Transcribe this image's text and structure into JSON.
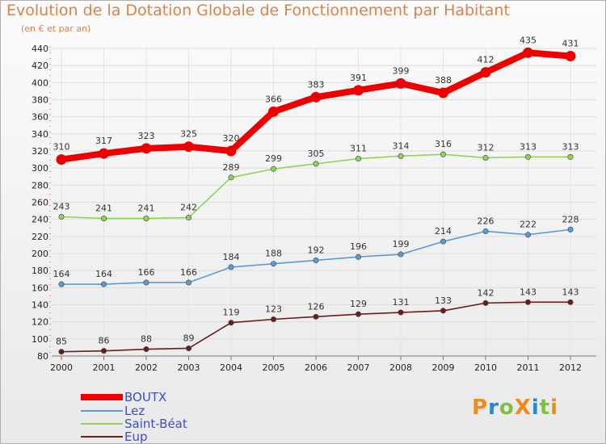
{
  "title": "Evolution de la Dotation Globale de Fonctionnement par Habitant",
  "subtitle": "(en € et par an)",
  "logo": {
    "text": "ProXiti",
    "letters": [
      "P",
      "r",
      "o",
      "X",
      "i",
      "t",
      "i"
    ],
    "colors": [
      "#f08a1c",
      "#2a86d0",
      "#7cc242",
      "#f08a1c",
      "#2a86d0",
      "#7cc242",
      "#f08a1c"
    ]
  },
  "legend": [
    {
      "name": "BOUTX",
      "color": "#ee0000"
    },
    {
      "name": "Lez",
      "color": "#5b9bd5"
    },
    {
      "name": "Saint-Béat",
      "color": "#8ed454"
    },
    {
      "name": "Eup",
      "color": "#6b1c1c"
    }
  ],
  "chart_data": {
    "type": "line",
    "title": "Evolution de la Dotation Globale de Fonctionnement par Habitant",
    "ylabel": "(en € et par an)",
    "xlabel": "",
    "x": [
      "2000",
      "2001",
      "2002",
      "2003",
      "2004",
      "2005",
      "2006",
      "2007",
      "2008",
      "2009",
      "2010",
      "2011",
      "2012"
    ],
    "ylim": [
      80,
      440
    ],
    "yticks": [
      80,
      100,
      120,
      140,
      160,
      180,
      200,
      220,
      240,
      260,
      280,
      300,
      320,
      340,
      360,
      380,
      400,
      420,
      440
    ],
    "grid": true,
    "legend_position": "bottom-left",
    "series": [
      {
        "name": "BOUTX",
        "color": "#ee0000",
        "emphasis": true,
        "values": [
          310,
          317,
          323,
          325,
          320,
          366,
          383,
          391,
          399,
          388,
          412,
          435,
          431
        ]
      },
      {
        "name": "Lez",
        "color": "#5b9bd5",
        "values": [
          164,
          164,
          166,
          166,
          184,
          188,
          192,
          196,
          199,
          214,
          226,
          222,
          228
        ]
      },
      {
        "name": "Saint-Béat",
        "color": "#8ed454",
        "values": [
          243,
          241,
          241,
          242,
          289,
          299,
          305,
          311,
          314,
          316,
          312,
          313,
          313
        ]
      },
      {
        "name": "Eup",
        "color": "#6b1c1c",
        "values": [
          85,
          86,
          88,
          89,
          119,
          123,
          126,
          129,
          131,
          133,
          142,
          143,
          143
        ]
      }
    ]
  }
}
